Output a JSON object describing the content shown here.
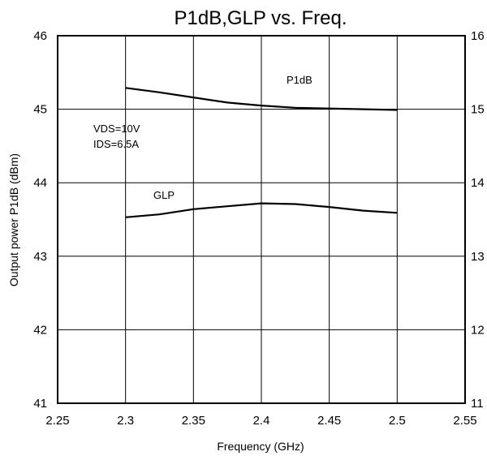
{
  "chart_data": {
    "type": "line",
    "title": "P1dB,GLP vs. Freq.",
    "xlabel": "Frequency (GHz)",
    "ylabel": "Output power P1dB (dBm)",
    "y2label": "",
    "xlim": [
      2.25,
      2.55
    ],
    "ylim": [
      41,
      46
    ],
    "y2lim": [
      11,
      16
    ],
    "x_ticks": [
      "2.25",
      "2.3",
      "2.35",
      "2.4",
      "2.45",
      "2.5",
      "2.55"
    ],
    "y_ticks": [
      "41",
      "42",
      "43",
      "44",
      "45",
      "46"
    ],
    "y2_ticks": [
      "11",
      "12",
      "13",
      "14",
      "15",
      "16"
    ],
    "grid": true,
    "series": [
      {
        "name": "P1dB",
        "axis": "left",
        "x": [
          2.3,
          2.325,
          2.35,
          2.375,
          2.4,
          2.425,
          2.45,
          2.475,
          2.5
        ],
        "values": [
          45.29,
          45.23,
          45.16,
          45.09,
          45.05,
          45.02,
          45.01,
          45.0,
          44.99
        ]
      },
      {
        "name": "GLP",
        "axis": "right",
        "x": [
          2.3,
          2.325,
          2.35,
          2.375,
          2.4,
          2.425,
          2.45,
          2.475,
          2.5
        ],
        "values": [
          13.53,
          13.57,
          13.64,
          13.68,
          13.72,
          13.71,
          13.67,
          13.62,
          13.59
        ]
      }
    ],
    "annotations": [
      "VDS=10V",
      "IDS=6.5A"
    ]
  }
}
